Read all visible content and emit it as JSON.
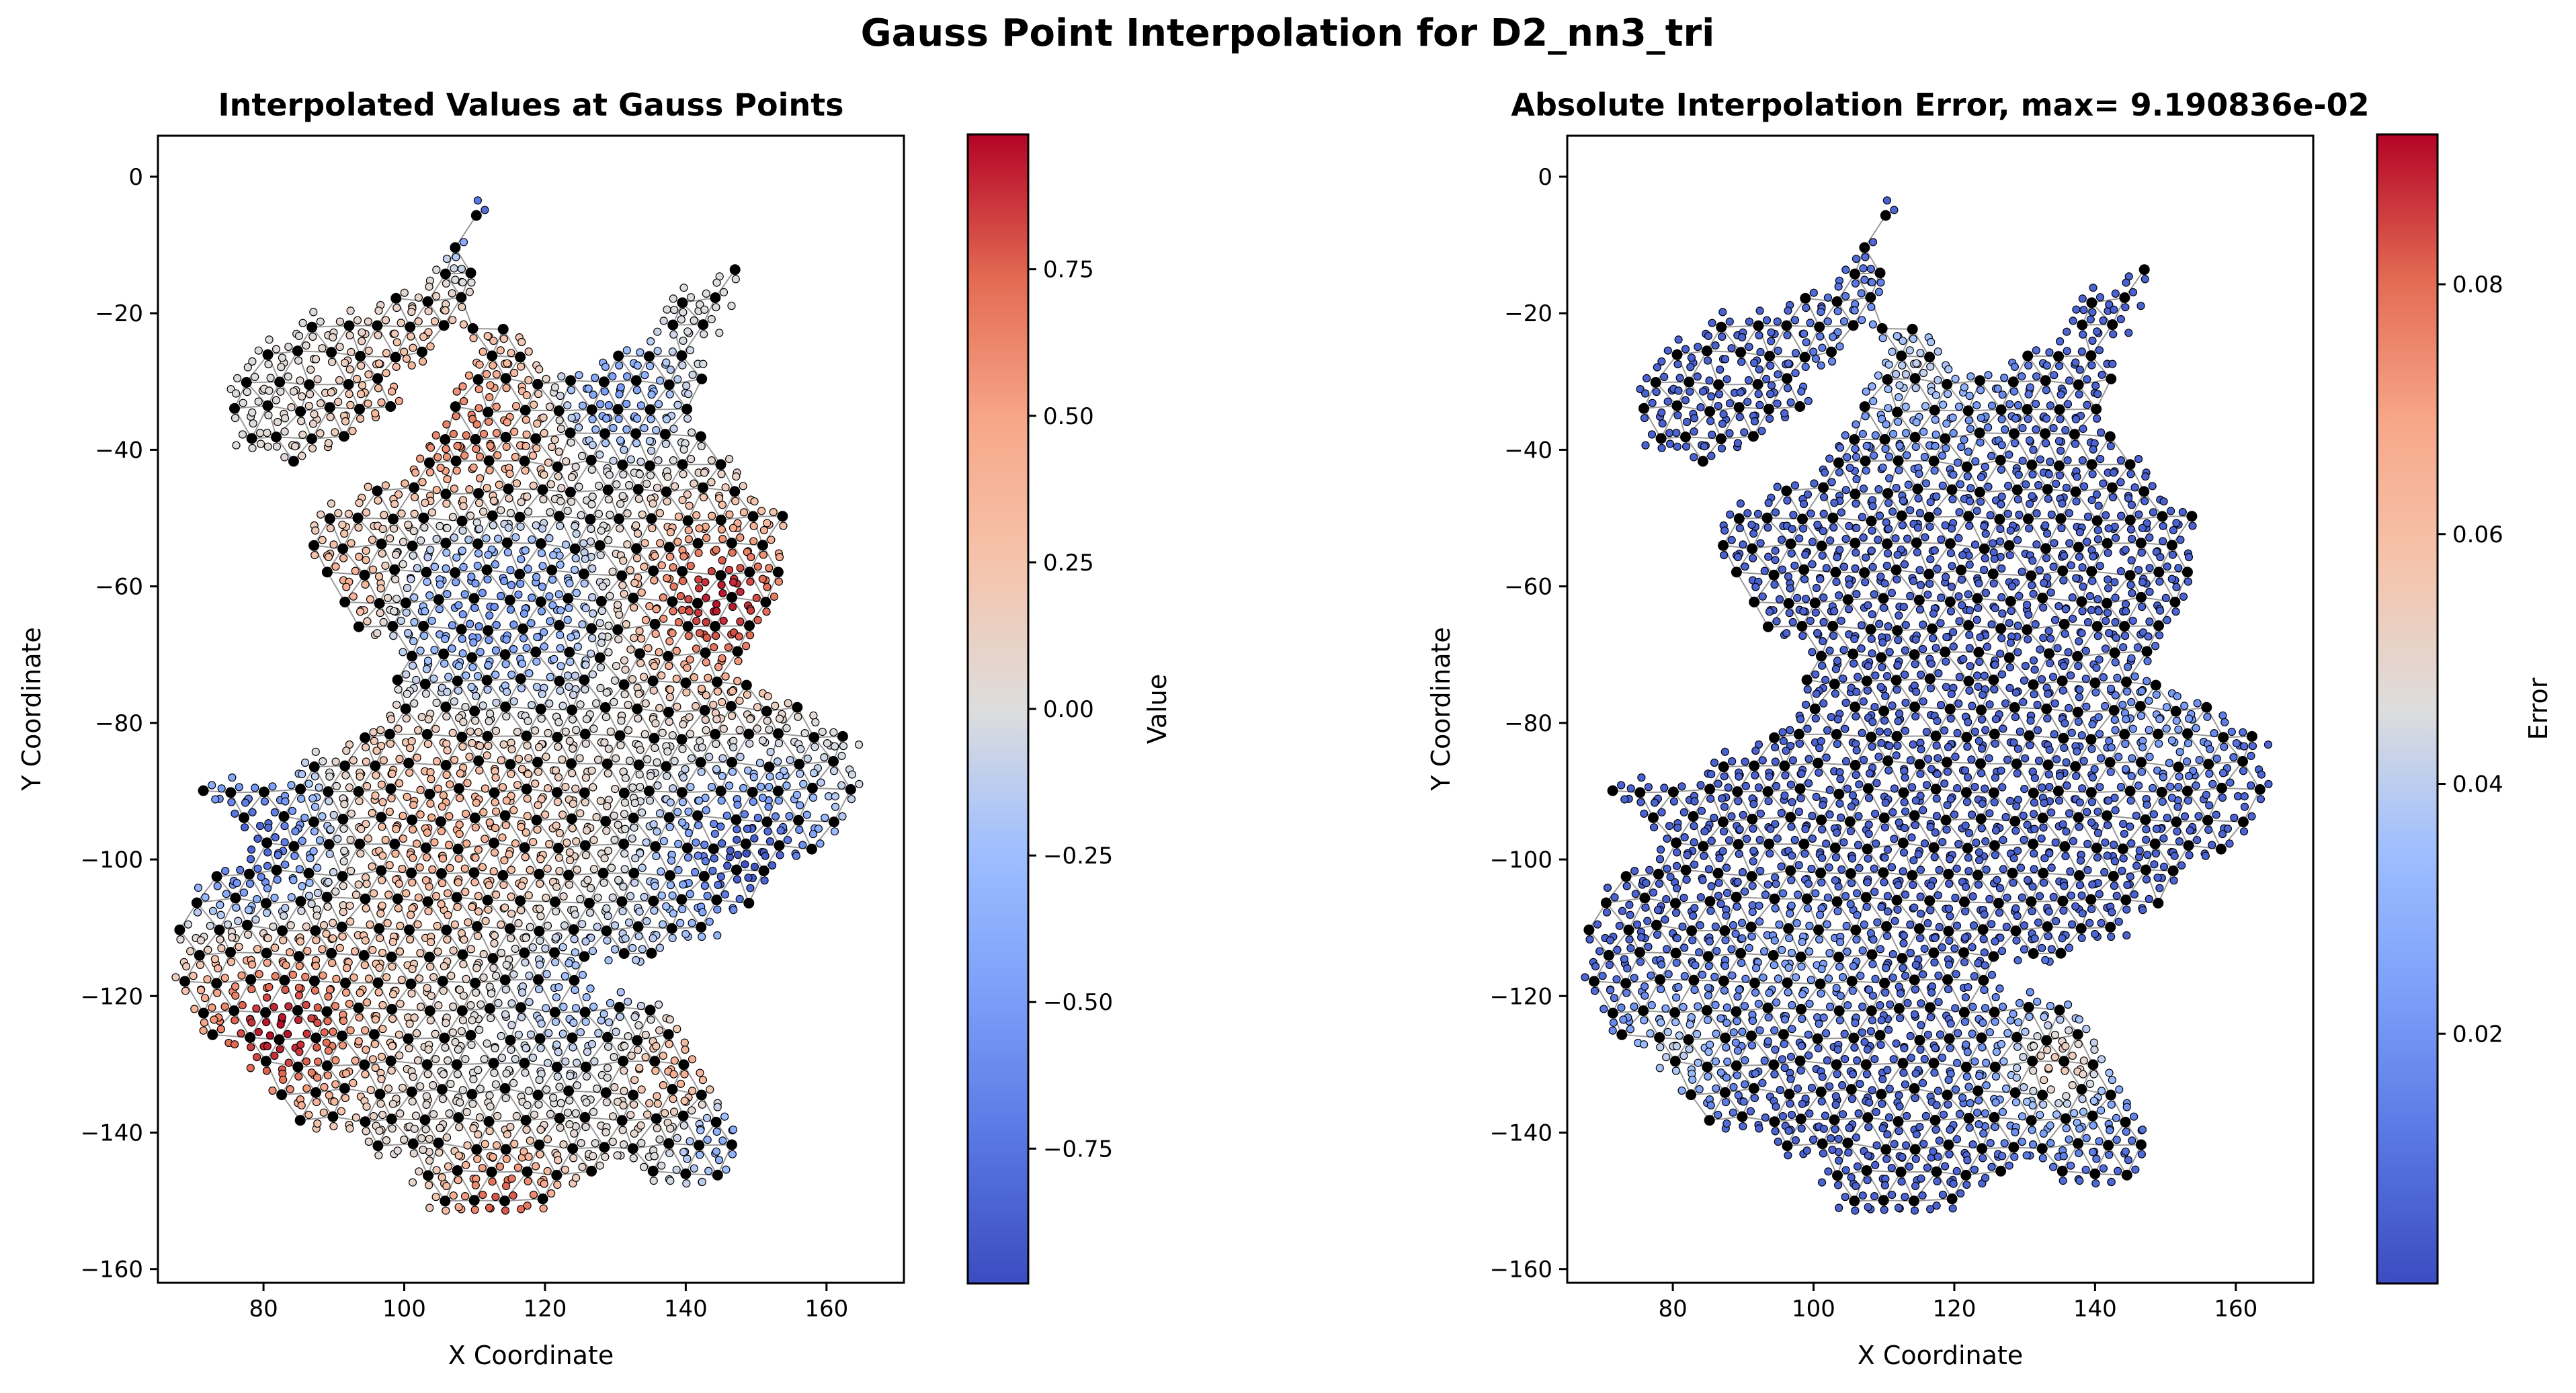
{
  "figure_title": "Gauss Point Interpolation for D2_nn3_tri",
  "chart_data": [
    {
      "type": "scatter",
      "title": "Interpolated Values at Gauss Points",
      "xlabel": "X Coordinate",
      "ylabel": "Y Coordinate",
      "xlim": [
        65,
        171
      ],
      "ylim": [
        -162,
        6
      ],
      "xticks": [
        80,
        100,
        120,
        140,
        160
      ],
      "yticks": [
        0,
        -20,
        -40,
        -60,
        -80,
        -100,
        -120,
        -140,
        -160
      ],
      "colormap": "coolwarm",
      "colorbar": {
        "label": "Value",
        "range": [
          -0.98,
          0.98
        ],
        "ticks": [
          0.75,
          0.5,
          0.25,
          0.0,
          -0.25,
          -0.5,
          -0.75
        ],
        "tick_labels": [
          "0.75",
          "0.50",
          "0.25",
          "0.00",
          "−0.25",
          "−0.50",
          "−0.75"
        ]
      },
      "grid": false,
      "markers": {
        "nodes": "black dots",
        "gauss_points": "small dots colored by value",
        "mesh": "gray triangle edges"
      }
    },
    {
      "type": "scatter",
      "title": "Absolute Interpolation Error, max= 9.190836e-02",
      "xlabel": "X Coordinate",
      "ylabel": "Y Coordinate",
      "xlim": [
        65,
        171
      ],
      "ylim": [
        -162,
        6
      ],
      "xticks": [
        80,
        100,
        120,
        140,
        160
      ],
      "yticks": [
        0,
        -20,
        -40,
        -60,
        -80,
        -100,
        -120,
        -140,
        -160
      ],
      "colormap": "coolwarm",
      "colorbar": {
        "label": "Error",
        "range": [
          0.0,
          0.092
        ],
        "ticks": [
          0.08,
          0.06,
          0.04,
          0.02
        ],
        "tick_labels": [
          "0.08",
          "0.06",
          "0.04",
          "0.02"
        ]
      },
      "grid": false,
      "markers": {
        "nodes": "black dots",
        "gauss_points": "small dots colored by error",
        "mesh": "gray triangle edges"
      }
    }
  ],
  "colors": {
    "cmap_low": "#3b4cc0",
    "cmap_mid": "#dddddd",
    "cmap_high": "#b40426",
    "node": "#000000",
    "mesh_edge": "#888888"
  }
}
